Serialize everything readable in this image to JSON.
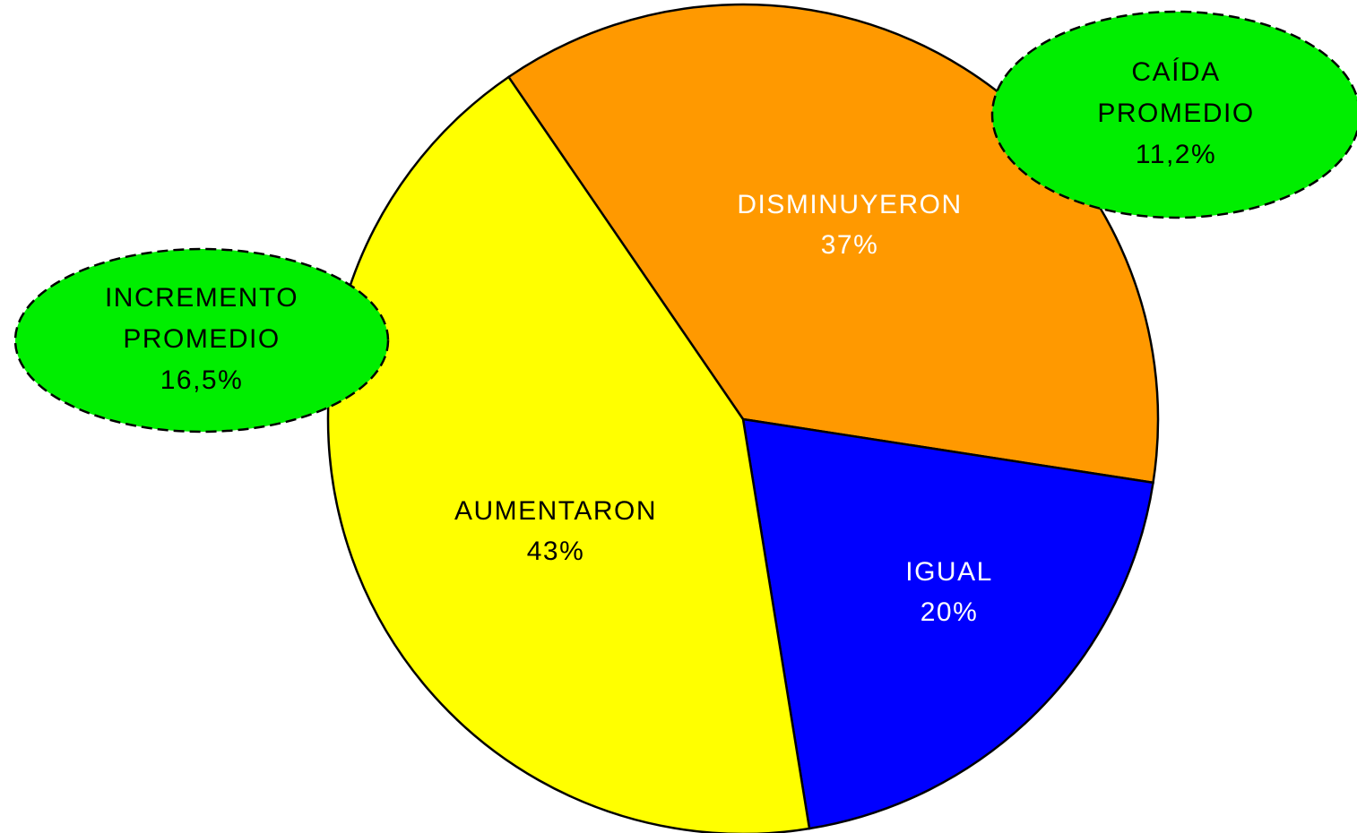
{
  "chart_data": {
    "type": "pie",
    "categories": [
      "DISMINUYERON",
      "IGUAL",
      "AUMENTARON"
    ],
    "values": [
      37,
      20,
      43
    ],
    "value_labels": [
      "37%",
      "20%",
      "43%"
    ],
    "colors": [
      "#ff9900",
      "#0000ff",
      "#ffff00"
    ],
    "label_colors": [
      "#ffffff",
      "#ffffff",
      "#000000"
    ],
    "annotations": [
      {
        "lines": [
          "INCREMENTO",
          "PROMEDIO",
          "16,5%"
        ],
        "color": "#00ee00"
      },
      {
        "lines": [
          "CAÍDA",
          "PROMEDIO",
          "11,2%"
        ],
        "color": "#00ee00"
      }
    ]
  }
}
